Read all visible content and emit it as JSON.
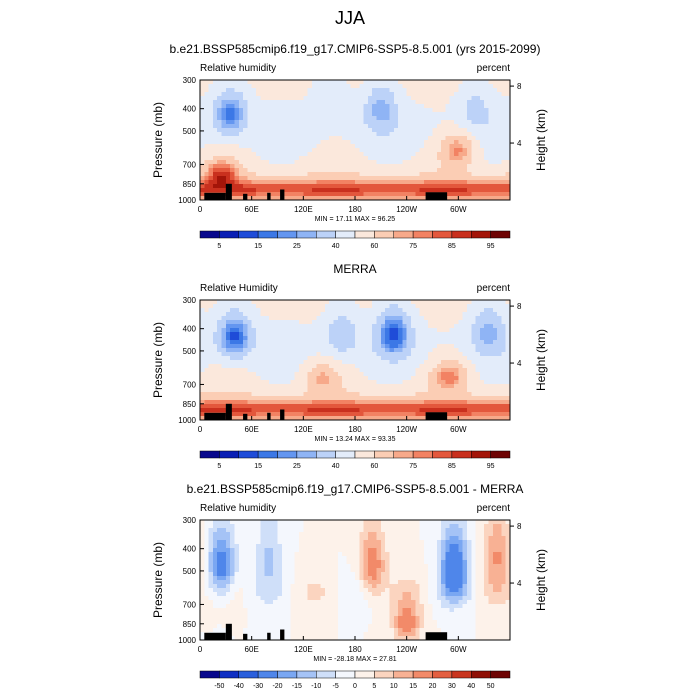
{
  "figure_title": "JJA",
  "panels": [
    {
      "title": "b.e21.BSSP585cmip6.f19_g17.CMIP6-SSP5-8.5.001 (yrs 2015-2099)",
      "left_label": "Relative humidity",
      "right_label": "percent",
      "stats": "MIN = 17.11  MAX = 96.25",
      "colorbar_labels": [
        "5",
        "15",
        "25",
        "40",
        "60",
        "75",
        "85",
        "95"
      ]
    },
    {
      "title": "MERRA",
      "left_label": "Relative Humidity",
      "right_label": "percent",
      "stats": "MIN = 13.24  MAX = 93.35",
      "colorbar_labels": [
        "5",
        "15",
        "25",
        "40",
        "60",
        "75",
        "85",
        "95"
      ]
    },
    {
      "title": "b.e21.BSSP585cmip6.f19_g17.CMIP6-SSP5-8.5.001 - MERRA",
      "left_label": "Relative humidity",
      "right_label": "percent",
      "stats": "MIN = -28.18  MAX = 27.81",
      "colorbar_labels": [
        "-50",
        "-40",
        "-30",
        "-20",
        "-15",
        "-10",
        "-5",
        "0",
        "5",
        "10",
        "15",
        "20",
        "30",
        "40",
        "50"
      ]
    }
  ],
  "axis_labels": {
    "y_left": "Pressure (mb)",
    "y_right": "Height (km)"
  },
  "colormap": {
    "absolute": [
      "#08088c",
      "#0a1fb4",
      "#1f4cd8",
      "#3c78e6",
      "#6496f0",
      "#8fb4f5",
      "#bcd2f8",
      "#e3ecfa",
      "#fbe8dc",
      "#fbcdb4",
      "#f7a98a",
      "#f28263",
      "#e3573c",
      "#c9301e",
      "#a31509",
      "#6e0404"
    ],
    "anomaly": [
      "#08088c",
      "#0f2fc3",
      "#2a5fdc",
      "#4f86ea",
      "#7aa7f2",
      "#a5c3f6",
      "#cfdff9",
      "#f4f7fd",
      "#fdf2ea",
      "#fbd4bf",
      "#f8b194",
      "#f28a69",
      "#e35f41",
      "#c9351f",
      "#8f0f05",
      "#6e0404"
    ]
  },
  "chart_data": [
    {
      "type": "heatmap",
      "title": "b.e21.BSSP585cmip6.f19_g17.CMIP6-SSP5-8.5.001 (yrs 2015-2099)",
      "variable": "Relative humidity",
      "units": "percent",
      "x_ticks": [
        "0",
        "60E",
        "120E",
        "180",
        "120W",
        "60W"
      ],
      "x_tick_lon": [
        0,
        60,
        120,
        180,
        240,
        300
      ],
      "xlim": [
        0,
        360
      ],
      "y_ticks_pressure": [
        "300",
        "400",
        "500",
        "700",
        "850",
        "1000"
      ],
      "y_ticks_height_km": [
        "8",
        "4"
      ],
      "ylim_pressure": [
        1000,
        300
      ],
      "contour_levels": [
        5,
        10,
        15,
        20,
        25,
        30,
        40,
        50,
        60,
        70,
        75,
        80,
        85,
        90,
        95
      ],
      "min": 17.11,
      "max": 96.25,
      "features": [
        {
          "lon": 35,
          "p": 420,
          "value": 20
        },
        {
          "lon": 210,
          "p": 400,
          "value": 30
        },
        {
          "lon": 320,
          "p": 400,
          "value": 40
        },
        {
          "lon": 150,
          "p": 330,
          "value": 45
        },
        {
          "lon": 300,
          "p": 600,
          "value": 82
        },
        {
          "lon": 25,
          "p": 760,
          "value": 85
        }
      ]
    },
    {
      "type": "heatmap",
      "title": "MERRA",
      "variable": "Relative Humidity",
      "units": "percent",
      "x_ticks": [
        "0",
        "60E",
        "120E",
        "180",
        "120W",
        "60W"
      ],
      "x_tick_lon": [
        0,
        60,
        120,
        180,
        240,
        300
      ],
      "xlim": [
        0,
        360
      ],
      "y_ticks_pressure": [
        "300",
        "400",
        "500",
        "700",
        "850",
        "1000"
      ],
      "y_ticks_height_km": [
        "8",
        "4"
      ],
      "ylim_pressure": [
        1000,
        300
      ],
      "contour_levels": [
        5,
        10,
        15,
        20,
        25,
        30,
        40,
        50,
        60,
        70,
        75,
        80,
        85,
        90,
        95
      ],
      "min": 13.24,
      "max": 93.35,
      "features": [
        {
          "lon": 40,
          "p": 430,
          "value": 15
        },
        {
          "lon": 225,
          "p": 420,
          "value": 15
        },
        {
          "lon": 335,
          "p": 410,
          "value": 30
        },
        {
          "lon": 165,
          "p": 420,
          "value": 35
        },
        {
          "lon": 290,
          "p": 640,
          "value": 82
        },
        {
          "lon": 140,
          "p": 650,
          "value": 75
        }
      ]
    },
    {
      "type": "heatmap",
      "title": "b.e21.BSSP585cmip6.f19_g17.CMIP6-SSP5-8.5.001 - MERRA",
      "variable": "Relative humidity",
      "units": "percent",
      "x_ticks": [
        "0",
        "60E",
        "120E",
        "180",
        "120W",
        "60W"
      ],
      "x_tick_lon": [
        0,
        60,
        120,
        180,
        240,
        300
      ],
      "xlim": [
        0,
        360
      ],
      "y_ticks_pressure": [
        "300",
        "400",
        "500",
        "700",
        "850",
        "1000"
      ],
      "y_ticks_height_km": [
        "8",
        "4"
      ],
      "ylim_pressure": [
        1000,
        300
      ],
      "contour_levels": [
        -50,
        -40,
        -30,
        -20,
        -15,
        -10,
        -5,
        0,
        5,
        10,
        15,
        20,
        30,
        40,
        50
      ],
      "min": -28.18,
      "max": 27.81,
      "features": [
        {
          "lon": 25,
          "p": 480,
          "value": -25
        },
        {
          "lon": 295,
          "p": 480,
          "value": -28
        },
        {
          "lon": 200,
          "p": 480,
          "value": 20
        },
        {
          "lon": 345,
          "p": 420,
          "value": 15
        },
        {
          "lon": 240,
          "p": 840,
          "value": 20
        },
        {
          "lon": 80,
          "p": 420,
          "value": -10
        }
      ]
    }
  ]
}
